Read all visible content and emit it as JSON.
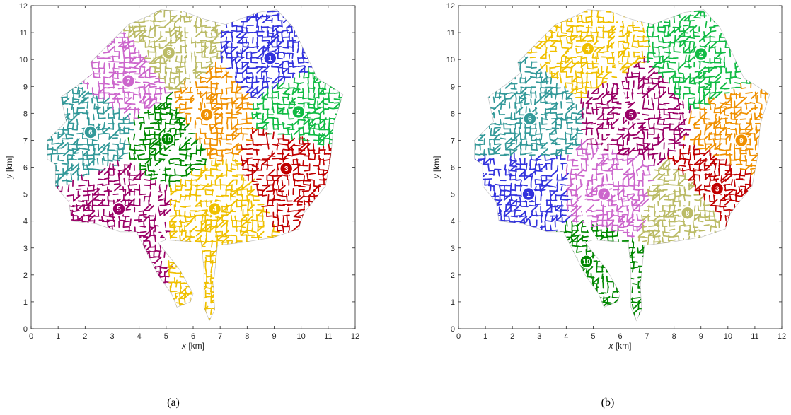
{
  "chart_data": [
    {
      "type": "scatter",
      "caption": "(a)",
      "xlabel_var": "x",
      "xlabel_unit": " [km]",
      "ylabel_var": "y",
      "ylabel_unit": " [km]",
      "xlim": [
        0,
        12
      ],
      "ylim": [
        0,
        12
      ],
      "xticks": [
        0,
        1,
        2,
        3,
        4,
        5,
        6,
        7,
        8,
        9,
        10,
        11,
        12
      ],
      "yticks": [
        0,
        1,
        2,
        3,
        4,
        5,
        6,
        7,
        8,
        9,
        10,
        11,
        12
      ],
      "grid": false,
      "zones": [
        {
          "label": "1",
          "color": "#3333dd",
          "x": 8.85,
          "y": 10.05
        },
        {
          "label": "2",
          "color": "#11bb44",
          "x": 9.9,
          "y": 8.05
        },
        {
          "label": "3",
          "color": "#c00000",
          "x": 9.45,
          "y": 5.95
        },
        {
          "label": "4",
          "color": "#f0c000",
          "x": 6.8,
          "y": 4.45
        },
        {
          "label": "5",
          "color": "#990066",
          "x": 3.25,
          "y": 4.45
        },
        {
          "label": "6",
          "color": "#339999",
          "x": 2.2,
          "y": 7.3
        },
        {
          "label": "7",
          "color": "#cc66cc",
          "x": 3.6,
          "y": 9.2
        },
        {
          "label": "8",
          "color": "#bbbb66",
          "x": 5.1,
          "y": 10.25
        },
        {
          "label": "9",
          "color": "#f09000",
          "x": 6.5,
          "y": 7.95
        },
        {
          "label": "10",
          "color": "#008800",
          "x": 5.05,
          "y": 7.05
        }
      ]
    },
    {
      "type": "scatter",
      "caption": "(b)",
      "xlabel_var": "x",
      "xlabel_unit": " [km]",
      "ylabel_var": "y",
      "ylabel_unit": " [km]",
      "xlim": [
        0,
        12
      ],
      "ylim": [
        0,
        12
      ],
      "xticks": [
        0,
        1,
        2,
        3,
        4,
        5,
        6,
        7,
        8,
        9,
        10,
        11,
        12
      ],
      "yticks": [
        0,
        1,
        2,
        3,
        4,
        5,
        6,
        7,
        8,
        9,
        10,
        11,
        12
      ],
      "grid": false,
      "zones": [
        {
          "label": "1",
          "color": "#3333dd",
          "x": 2.6,
          "y": 5.0
        },
        {
          "label": "2",
          "color": "#11bb44",
          "x": 9.0,
          "y": 10.2
        },
        {
          "label": "3",
          "color": "#c00000",
          "x": 9.6,
          "y": 5.2
        },
        {
          "label": "4",
          "color": "#f0c000",
          "x": 4.8,
          "y": 10.4
        },
        {
          "label": "5",
          "color": "#990066",
          "x": 6.4,
          "y": 7.95
        },
        {
          "label": "6",
          "color": "#339999",
          "x": 2.65,
          "y": 7.8
        },
        {
          "label": "7",
          "color": "#cc66cc",
          "x": 5.4,
          "y": 5.0
        },
        {
          "label": "8",
          "color": "#bbbb66",
          "x": 8.5,
          "y": 4.3
        },
        {
          "label": "9",
          "color": "#f09000",
          "x": 10.5,
          "y": 7.0
        },
        {
          "label": "10",
          "color": "#008800",
          "x": 4.75,
          "y": 2.5
        }
      ]
    }
  ]
}
